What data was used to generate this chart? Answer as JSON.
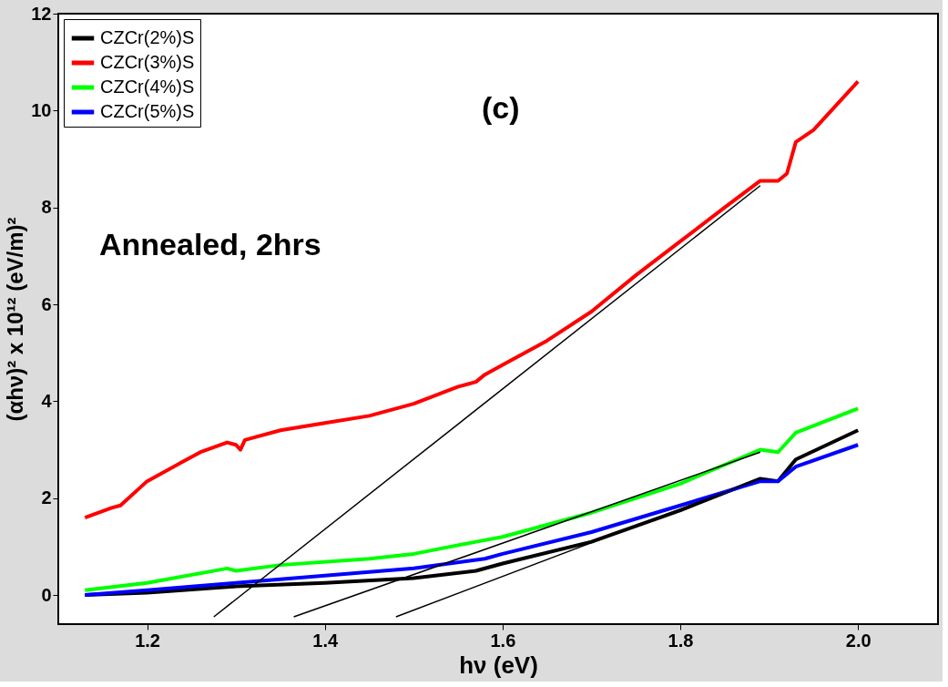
{
  "chart_data": {
    "type": "line",
    "xlabel": "hν (eV)",
    "ylabel": "(αhν)² x 10¹² (eV/m)²",
    "xlim": [
      1.1,
      2.09
    ],
    "ylim": [
      -0.6,
      12
    ],
    "xticks": [
      1.2,
      1.4,
      1.6,
      1.8,
      {
        "value": 2,
        "label": "2.0"
      }
    ],
    "yticks": [
      0,
      2,
      4,
      6,
      8,
      10,
      12
    ],
    "legend": "top left",
    "grid": false,
    "annotations": [
      "(c)",
      "Annealed, 2hrs"
    ],
    "series": [
      {
        "name": "CZCr(2%)S",
        "color": "#000000",
        "x": [
          1.13,
          1.2,
          1.3,
          1.4,
          1.5,
          1.57,
          1.6,
          1.7,
          1.8,
          1.89,
          1.91,
          1.93,
          2.0
        ],
        "values": [
          0.0,
          0.05,
          0.18,
          0.25,
          0.35,
          0.5,
          0.65,
          1.1,
          1.75,
          2.4,
          2.35,
          2.8,
          3.4
        ]
      },
      {
        "name": "CZCr(3%)S",
        "color": "#ff0000",
        "x": [
          1.13,
          1.16,
          1.17,
          1.2,
          1.24,
          1.26,
          1.29,
          1.3,
          1.305,
          1.31,
          1.35,
          1.4,
          1.45,
          1.5,
          1.55,
          1.57,
          1.58,
          1.6,
          1.65,
          1.7,
          1.75,
          1.8,
          1.85,
          1.89,
          1.91,
          1.92,
          1.93,
          1.95,
          2.0
        ],
        "values": [
          1.6,
          1.8,
          1.85,
          2.35,
          2.75,
          2.95,
          3.15,
          3.1,
          3.0,
          3.2,
          3.4,
          3.55,
          3.7,
          3.95,
          4.3,
          4.4,
          4.55,
          4.75,
          5.25,
          5.85,
          6.6,
          7.3,
          8.0,
          8.55,
          8.55,
          8.7,
          9.35,
          9.6,
          10.6
        ]
      },
      {
        "name": "CZCr(4%)S",
        "color": "#00ff00",
        "x": [
          1.13,
          1.2,
          1.29,
          1.3,
          1.35,
          1.45,
          1.5,
          1.57,
          1.6,
          1.7,
          1.8,
          1.89,
          1.91,
          1.93,
          2.0
        ],
        "values": [
          0.1,
          0.25,
          0.55,
          0.5,
          0.62,
          0.75,
          0.85,
          1.1,
          1.2,
          1.7,
          2.3,
          3.0,
          2.95,
          3.35,
          3.85
        ]
      },
      {
        "name": "CZCr(5%)S",
        "color": "#0000ff",
        "x": [
          1.13,
          1.2,
          1.3,
          1.4,
          1.5,
          1.58,
          1.6,
          1.7,
          1.8,
          1.89,
          1.91,
          1.93,
          2.0
        ],
        "values": [
          0.0,
          0.1,
          0.25,
          0.4,
          0.55,
          0.75,
          0.85,
          1.3,
          1.85,
          2.35,
          2.35,
          2.65,
          3.1
        ]
      },
      {
        "type": "line",
        "color": "#000000",
        "x": [
          1.89,
          1.275
        ],
        "values": [
          8.45,
          -0.45
        ]
      },
      {
        "type": "line",
        "color": "#000000",
        "x": [
          1.89,
          1.365
        ],
        "values": [
          2.95,
          -0.45
        ]
      },
      {
        "type": "line",
        "color": "#000000",
        "x": [
          1.89,
          1.48
        ],
        "values": [
          2.4,
          -0.45
        ]
      }
    ]
  }
}
